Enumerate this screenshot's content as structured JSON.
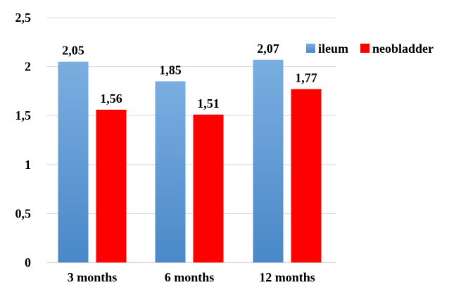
{
  "chart_data": {
    "type": "bar",
    "title": "",
    "xlabel": "",
    "ylabel": "",
    "categories": [
      "3 months",
      "6 months",
      "12 months"
    ],
    "series": [
      {
        "name": "ileum",
        "values": [
          2.05,
          1.85,
          2.07
        ],
        "labels": [
          "2,05",
          "1,85",
          "2,07"
        ],
        "color": "#5b9bd5"
      },
      {
        "name": "neobladder",
        "values": [
          1.56,
          1.51,
          1.77
        ],
        "labels": [
          "1,56",
          "1,51",
          "1,77"
        ],
        "color": "#ff0000"
      }
    ],
    "ylim": [
      0,
      2.5
    ],
    "yticks": [
      {
        "value": 0,
        "label": "0"
      },
      {
        "value": 0.5,
        "label": "0,5"
      },
      {
        "value": 1,
        "label": "1"
      },
      {
        "value": 1.5,
        "label": "1,5"
      },
      {
        "value": 2,
        "label": "2"
      },
      {
        "value": 2.5,
        "label": "2,5"
      }
    ],
    "grid": true,
    "legend_position": "top-right"
  }
}
